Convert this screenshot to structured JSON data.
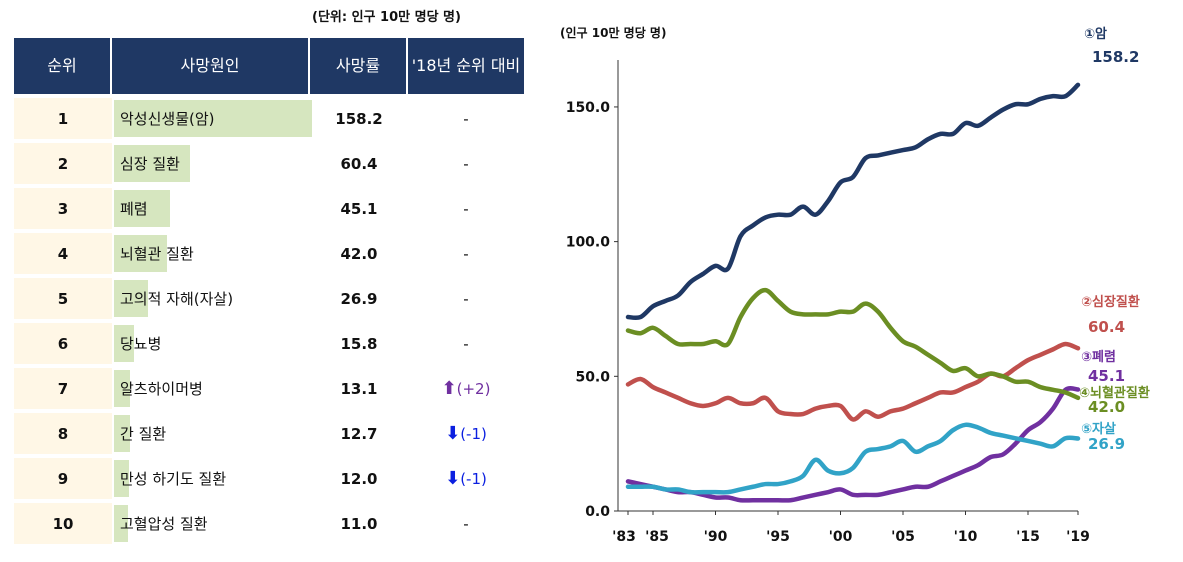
{
  "table": {
    "unit_note": "(단위: 인구 10만 명당 명)",
    "headers": {
      "rank": "순위",
      "cause": "사망원인",
      "rate": "사망률",
      "change": "'18년 순위 대비"
    },
    "rows": [
      {
        "rank": "1",
        "cause": "악성신생물(암)",
        "rate": 158.2,
        "rate_label": "158.2",
        "change": "-",
        "change_dir": ""
      },
      {
        "rank": "2",
        "cause": "심장 질환",
        "rate": 60.4,
        "rate_label": "60.4",
        "change": "-",
        "change_dir": ""
      },
      {
        "rank": "3",
        "cause": "폐렴",
        "rate": 45.1,
        "rate_label": "45.1",
        "change": "-",
        "change_dir": ""
      },
      {
        "rank": "4",
        "cause": "뇌혈관 질환",
        "rate": 42.0,
        "rate_label": "42.0",
        "change": "-",
        "change_dir": ""
      },
      {
        "rank": "5",
        "cause": "고의적 자해(자살)",
        "rate": 26.9,
        "rate_label": "26.9",
        "change": "-",
        "change_dir": ""
      },
      {
        "rank": "6",
        "cause": "당뇨병",
        "rate": 15.8,
        "rate_label": "15.8",
        "change": "-",
        "change_dir": ""
      },
      {
        "rank": "7",
        "cause": "알츠하이머병",
        "rate": 13.1,
        "rate_label": "13.1",
        "change": "(+2)",
        "change_dir": "up"
      },
      {
        "rank": "8",
        "cause": "간 질환",
        "rate": 12.7,
        "rate_label": "12.7",
        "change": "(-1)",
        "change_dir": "down"
      },
      {
        "rank": "9",
        "cause": "만성 하기도 질환",
        "rate": 12.0,
        "rate_label": "12.0",
        "change": "(-1)",
        "change_dir": "down"
      },
      {
        "rank": "10",
        "cause": "고혈압성 질환",
        "rate": 11.0,
        "rate_label": "11.0",
        "change": "-",
        "change_dir": ""
      }
    ],
    "colors": {
      "header_bg": "#1f3864",
      "bar": "#d6e6bf",
      "rank_bg": "#fff7e6",
      "up": "#7030a0",
      "down": "#0b1fe0"
    }
  },
  "chart_data": {
    "type": "line",
    "ylabel": "(인구 10만 명당 명)",
    "ylim": [
      0,
      160
    ],
    "yticks": [
      0,
      50,
      100,
      150
    ],
    "ytick_labels": [
      "0.0",
      "50.0",
      "100.0",
      "150.0"
    ],
    "xlim": [
      1983,
      2019
    ],
    "xticks": [
      1983,
      1985,
      1990,
      1995,
      2000,
      2005,
      2010,
      2015,
      2019
    ],
    "xtick_labels": [
      "'83",
      "'85",
      "'90",
      "'95",
      "'00",
      "'05",
      "'10",
      "'15",
      "'19"
    ],
    "x": [
      1983,
      1984,
      1985,
      1986,
      1987,
      1988,
      1989,
      1990,
      1991,
      1992,
      1993,
      1994,
      1995,
      1996,
      1997,
      1998,
      1999,
      2000,
      2001,
      2002,
      2003,
      2004,
      2005,
      2006,
      2007,
      2008,
      2009,
      2010,
      2011,
      2012,
      2013,
      2014,
      2015,
      2016,
      2017,
      2018,
      2019
    ],
    "series": [
      {
        "name": "①암",
        "value_label": "158.2",
        "color": "#1f3864",
        "values": [
          72,
          72,
          76,
          78,
          80,
          85,
          88,
          91,
          90,
          102,
          106,
          109,
          110,
          110,
          113,
          110,
          115,
          122,
          124,
          131,
          132,
          133,
          134,
          135,
          138,
          140,
          140,
          144,
          143,
          146,
          149,
          151,
          151,
          153,
          154,
          154,
          158.2
        ]
      },
      {
        "name": "②심장질환",
        "value_label": "60.4",
        "color": "#c0504d",
        "values": [
          47,
          49,
          46,
          44,
          42,
          40,
          39,
          40,
          42,
          40,
          40,
          42,
          37,
          36,
          36,
          38,
          39,
          39,
          34,
          37,
          35,
          37,
          38,
          40,
          42,
          44,
          44,
          46,
          48,
          51,
          50,
          53,
          56,
          58,
          60,
          62,
          60.4
        ]
      },
      {
        "name": "③폐렴",
        "value_label": "45.1",
        "color": "#7030a0",
        "values": [
          11,
          10,
          9,
          8,
          7,
          7,
          6,
          5,
          5,
          4,
          4,
          4,
          4,
          4,
          5,
          6,
          7,
          8,
          6,
          6,
          6,
          7,
          8,
          9,
          9,
          11,
          13,
          15,
          17,
          20,
          21,
          25,
          30,
          33,
          38,
          45,
          45.1
        ]
      },
      {
        "name": "④뇌혈관질환",
        "value_label": "42.0",
        "color": "#6b8e23",
        "values": [
          67,
          66,
          68,
          65,
          62,
          62,
          62,
          63,
          62,
          72,
          79,
          82,
          78,
          74,
          73,
          73,
          73,
          74,
          74,
          77,
          74,
          68,
          63,
          61,
          58,
          55,
          52,
          53,
          50,
          51,
          50,
          48,
          48,
          46,
          45,
          44,
          42.0
        ]
      },
      {
        "name": "⑤자살",
        "value_label": "26.9",
        "color": "#31a3c7",
        "values": [
          9,
          9,
          9,
          8,
          8,
          7,
          7,
          7,
          7,
          8,
          9,
          10,
          10,
          11,
          13,
          19,
          15,
          14,
          16,
          22,
          23,
          24,
          26,
          22,
          24,
          26,
          30,
          32,
          31,
          29,
          28,
          27,
          26,
          25,
          24,
          27,
          26.9
        ]
      }
    ]
  }
}
